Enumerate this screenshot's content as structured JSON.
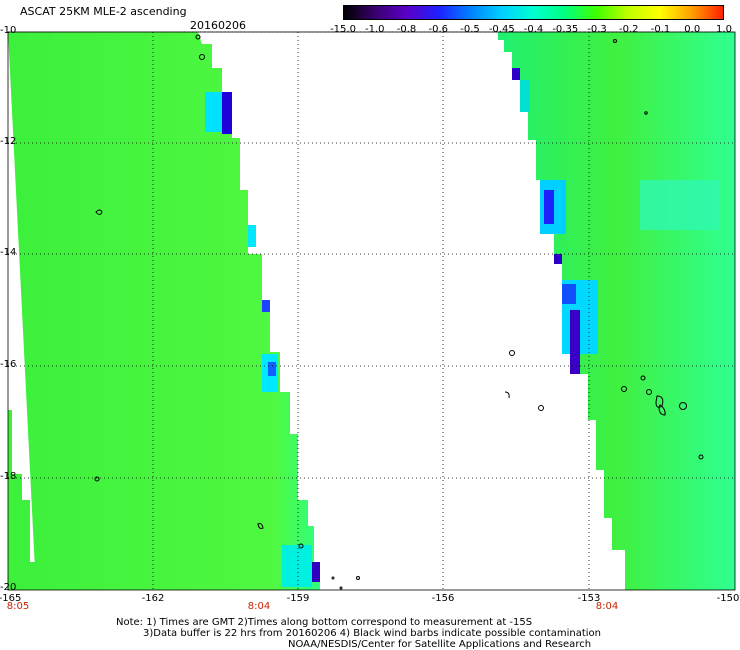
{
  "header": {
    "title": "ASCAT 25KM MLE-2 ascending",
    "date": "20160206"
  },
  "colorbar": {
    "labels": [
      "-15.0",
      "-1.0",
      "-0.8",
      "-0.6",
      "-0.5",
      "-0.45",
      "-0.4",
      "-0.35",
      "-0.3",
      "-0.2",
      "-0.1",
      "0.0",
      "1.0"
    ],
    "colors": [
      "#000000",
      "#3a0070",
      "#5a00c8",
      "#2020ff",
      "#0080ff",
      "#00d0ff",
      "#00ffd0",
      "#00ff80",
      "#40ff00",
      "#c0ff00",
      "#ffff00",
      "#ffa000",
      "#ff2000"
    ]
  },
  "axes": {
    "lat_labels": [
      "-10",
      "-12",
      "-14",
      "-16",
      "-18",
      "-20"
    ],
    "lon_labels": [
      "-165",
      "-162",
      "-159",
      "-156",
      "-153",
      "-150"
    ]
  },
  "times": [
    "8:05",
    "8:04",
    "8:04"
  ],
  "notes": [
    "Note: 1) Times are GMT 2)Times along bottom correspond to measurement at -15S",
    "3)Data buffer is 22 hrs from 20160206 4) Black wind barbs indicate possible contamination",
    "NOAA/NESDIS/Center for Satellite Applications and Research"
  ],
  "palette": {
    "field_green": "#3cf03c",
    "field_light": "#70ff40",
    "cyan": "#00e8ff",
    "blue": "#1040ff",
    "violet": "#4000d0"
  }
}
